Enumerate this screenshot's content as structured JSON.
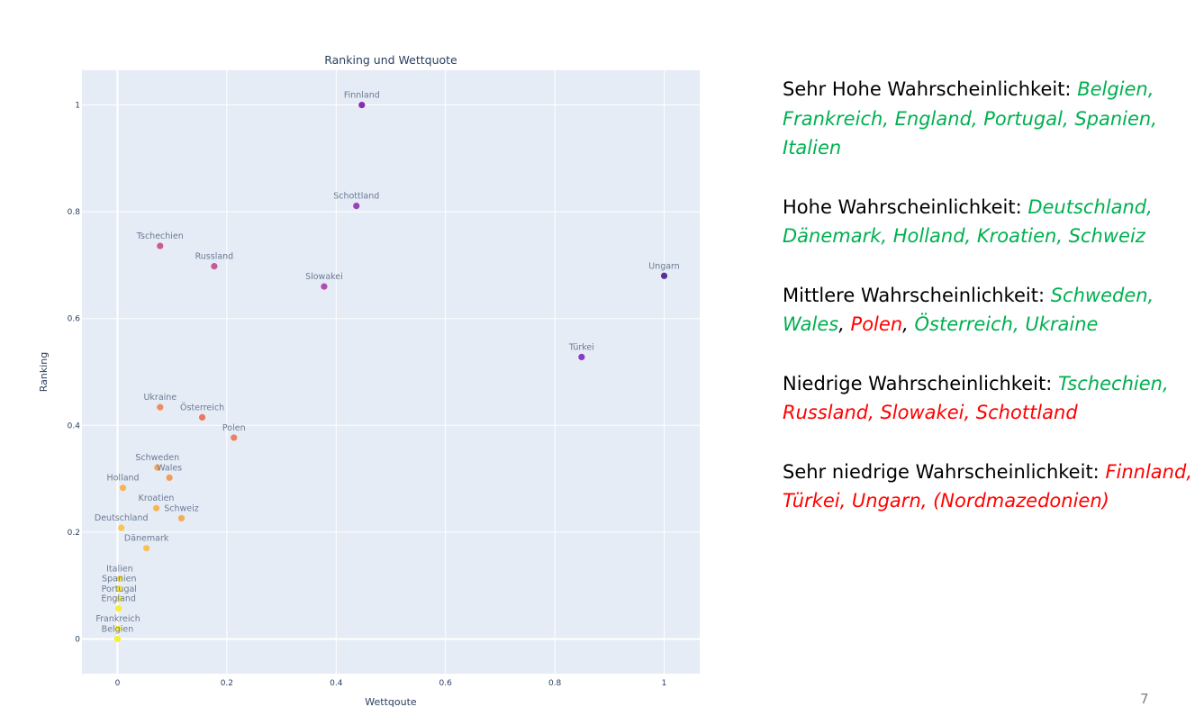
{
  "chart_data": {
    "type": "scatter",
    "title": "Ranking und Wettquote",
    "xlabel": "Wettqoute",
    "ylabel": "Ranking",
    "xlim": [
      -0.065,
      1.065
    ],
    "ylim": [
      -0.065,
      1.065
    ],
    "xticks": [
      0,
      0.2,
      0.4,
      0.6,
      0.8,
      1
    ],
    "xtick_labels": [
      "0",
      "0.2",
      "0.4",
      "0.6",
      "0.8",
      "1"
    ],
    "yticks": [
      0,
      0.2,
      0.4,
      0.6,
      0.8,
      1
    ],
    "ytick_labels": [
      "0",
      "0.2",
      "0.4",
      "0.6",
      "0.8",
      "1"
    ],
    "grid": true,
    "points": [
      {
        "name": "Finnland",
        "x": 0.447,
        "y": 1.0,
        "color": "#8b2ab8"
      },
      {
        "name": "Schottland",
        "x": 0.437,
        "y": 0.811,
        "color": "#9a3fbe"
      },
      {
        "name": "Tschechien",
        "x": 0.078,
        "y": 0.736,
        "color": "#cc5d88"
      },
      {
        "name": "Russland",
        "x": 0.177,
        "y": 0.698,
        "color": "#c85a95"
      },
      {
        "name": "Slowakei",
        "x": 0.378,
        "y": 0.66,
        "color": "#b34bb0"
      },
      {
        "name": "Ungarn",
        "x": 1.0,
        "y": 0.68,
        "color": "#5a2f9c"
      },
      {
        "name": "Türkei",
        "x": 0.849,
        "y": 0.528,
        "color": "#8a3bc4"
      },
      {
        "name": "Ukraine",
        "x": 0.078,
        "y": 0.434,
        "color": "#ef8b62"
      },
      {
        "name": "Österreich",
        "x": 0.155,
        "y": 0.415,
        "color": "#e8795e"
      },
      {
        "name": "Polen",
        "x": 0.213,
        "y": 0.377,
        "color": "#e88263"
      },
      {
        "name": "Schweden",
        "x": 0.073,
        "y": 0.321,
        "color": "#f7a75a"
      },
      {
        "name": "Wales",
        "x": 0.095,
        "y": 0.302,
        "color": "#f49b5c"
      },
      {
        "name": "Holland",
        "x": 0.01,
        "y": 0.283,
        "color": "#f9b451"
      },
      {
        "name": "Kroatien",
        "x": 0.071,
        "y": 0.245,
        "color": "#f7b458"
      },
      {
        "name": "Schweiz",
        "x": 0.117,
        "y": 0.226,
        "color": "#f6ab59"
      },
      {
        "name": "Deutschland",
        "x": 0.007,
        "y": 0.208,
        "color": "#fbc44c"
      },
      {
        "name": "Dänemark",
        "x": 0.053,
        "y": 0.17,
        "color": "#f8c253"
      },
      {
        "name": "Italien",
        "x": 0.004,
        "y": 0.113,
        "color": "#f7dd3a"
      },
      {
        "name": "Spanien",
        "x": 0.003,
        "y": 0.094,
        "color": "#f7e23a"
      },
      {
        "name": "Portugal",
        "x": 0.003,
        "y": 0.075,
        "color": "#f7e838"
      },
      {
        "name": "England",
        "x": 0.002,
        "y": 0.057,
        "color": "#f8ec36"
      },
      {
        "name": "Frankreich",
        "x": 0.001,
        "y": 0.019,
        "color": "#f9ee33"
      },
      {
        "name": "Belgien",
        "x": 0.0,
        "y": 0.0,
        "color": "#f9f030"
      }
    ]
  },
  "categories": [
    {
      "label": "Sehr Hohe Wahrscheinlichkeit: ",
      "items": [
        {
          "text": "Belgien, Frankreich, England, Portugal, Spanien, Italien",
          "color": "green"
        }
      ]
    },
    {
      "label": "Hohe Wahrscheinlichkeit: ",
      "items": [
        {
          "text": "Deutschland, Dänemark, Holland, Kroatien, Schweiz",
          "color": "green"
        }
      ]
    },
    {
      "label": "Mittlere Wahrscheinlichkeit: ",
      "items": [
        {
          "text": "Schweden, Wales",
          "color": "green"
        },
        {
          "text": ", ",
          "color": "sep"
        },
        {
          "text": "Polen",
          "color": "red"
        },
        {
          "text": ", ",
          "color": "sep"
        },
        {
          "text": "Österreich, Ukraine",
          "color": "green"
        }
      ]
    },
    {
      "label": "Niedrige Wahrscheinlichkeit: ",
      "items": [
        {
          "text": "Tschechien, ",
          "color": "green"
        },
        {
          "text": "Russland, Slowakei, Schottland",
          "color": "red"
        }
      ]
    },
    {
      "label": "Sehr niedrige Wahrscheinlichkeit: ",
      "items": [
        {
          "text": "Finnland, Türkei, Ungarn, (Nordmazedonien)",
          "color": "red"
        }
      ]
    }
  ],
  "page_number": "7"
}
